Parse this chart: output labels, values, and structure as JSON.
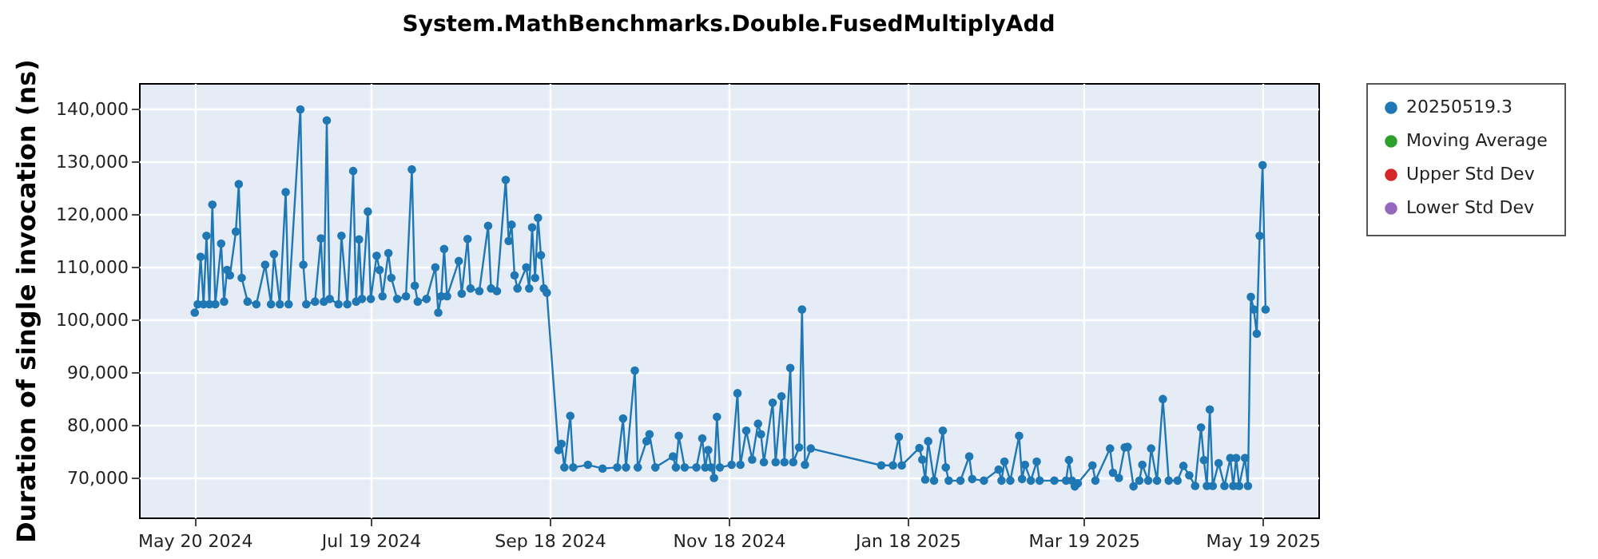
{
  "chart_data": {
    "type": "line",
    "title": "System.MathBenchmarks.Double.FusedMultiplyAdd",
    "ylabel": "Duration of single invocation (ns)",
    "xlim": [
      "2024-05-01",
      "2025-06-07"
    ],
    "xticks": [
      {
        "value": "2024-05-20",
        "label": "May 20 2024"
      },
      {
        "value": "2024-07-19",
        "label": "Jul 19 2024"
      },
      {
        "value": "2024-09-18",
        "label": "Sep 18 2024"
      },
      {
        "value": "2024-11-18",
        "label": "Nov 18 2024"
      },
      {
        "value": "2025-01-18",
        "label": "Jan 18 2025"
      },
      {
        "value": "2025-03-19",
        "label": "Mar 19 2025"
      },
      {
        "value": "2025-05-19",
        "label": "May 19 2025"
      }
    ],
    "ylim": [
      62500,
      145000
    ],
    "yticks": [
      {
        "value": 70000,
        "label": "70,000"
      },
      {
        "value": 80000,
        "label": "80,000"
      },
      {
        "value": 90000,
        "label": "90,000"
      },
      {
        "value": 100000,
        "label": "100,000"
      },
      {
        "value": 110000,
        "label": "110,000"
      },
      {
        "value": 120000,
        "label": "120,000"
      },
      {
        "value": 130000,
        "label": "130,000"
      },
      {
        "value": 140000,
        "label": "140,000"
      }
    ],
    "grid": true,
    "legend": "right",
    "marker": "circle",
    "line_style": "solid",
    "series": [
      {
        "name": "20250519.3",
        "color": "#1f77b4",
        "x": [
          "2024-05-20",
          "2024-05-21",
          "2024-05-22",
          "2024-05-23",
          "2024-05-24",
          "2024-05-25",
          "2024-05-26",
          "2024-05-27",
          "2024-05-29",
          "2024-05-30",
          "2024-05-31",
          "2024-06-01",
          "2024-06-03",
          "2024-06-04",
          "2024-06-05",
          "2024-06-07",
          "2024-06-10",
          "2024-06-13",
          "2024-06-15",
          "2024-06-16",
          "2024-06-18",
          "2024-06-20",
          "2024-06-21",
          "2024-06-25",
          "2024-06-26",
          "2024-06-27",
          "2024-06-30",
          "2024-07-02",
          "2024-07-03",
          "2024-07-04",
          "2024-07-05",
          "2024-07-08",
          "2024-07-09",
          "2024-07-11",
          "2024-07-13",
          "2024-07-14",
          "2024-07-15",
          "2024-07-16",
          "2024-07-18",
          "2024-07-19",
          "2024-07-21",
          "2024-07-22",
          "2024-07-23",
          "2024-07-25",
          "2024-07-26",
          "2024-07-28",
          "2024-07-31",
          "2024-08-02",
          "2024-08-03",
          "2024-08-04",
          "2024-08-07",
          "2024-08-10",
          "2024-08-11",
          "2024-08-12",
          "2024-08-13",
          "2024-08-14",
          "2024-08-18",
          "2024-08-19",
          "2024-08-21",
          "2024-08-22",
          "2024-08-25",
          "2024-08-28",
          "2024-08-29",
          "2024-08-31",
          "2024-09-03",
          "2024-09-04",
          "2024-09-05",
          "2024-09-06",
          "2024-09-07",
          "2024-09-10",
          "2024-09-11",
          "2024-09-12",
          "2024-09-13",
          "2024-09-14",
          "2024-09-15",
          "2024-09-16",
          "2024-09-17",
          "2024-09-21",
          "2024-09-22",
          "2024-09-23",
          "2024-09-25",
          "2024-09-26",
          "2024-10-01",
          "2024-10-06",
          "2024-10-11",
          "2024-10-13",
          "2024-10-14",
          "2024-10-17",
          "2024-10-18",
          "2024-10-21",
          "2024-10-22",
          "2024-10-24",
          "2024-10-30",
          "2024-10-31",
          "2024-11-01",
          "2024-11-03",
          "2024-11-07",
          "2024-11-09",
          "2024-11-10",
          "2024-11-11",
          "2024-11-12",
          "2024-11-13",
          "2024-11-14",
          "2024-11-15",
          "2024-11-19",
          "2024-11-21",
          "2024-11-22",
          "2024-11-24",
          "2024-11-26",
          "2024-11-28",
          "2024-11-29",
          "2024-11-30",
          "2024-12-03",
          "2024-12-04",
          "2024-12-06",
          "2024-12-07",
          "2024-12-09",
          "2024-12-10",
          "2024-12-12",
          "2024-12-13",
          "2024-12-14",
          "2024-12-16",
          "2025-01-09",
          "2025-01-13",
          "2025-01-15",
          "2025-01-16",
          "2025-01-22",
          "2025-01-23",
          "2025-01-24",
          "2025-01-25",
          "2025-01-27",
          "2025-01-30",
          "2025-01-31",
          "2025-02-01",
          "2025-02-05",
          "2025-02-08",
          "2025-02-09",
          "2025-02-13",
          "2025-02-18",
          "2025-02-19",
          "2025-02-20",
          "2025-02-22",
          "2025-02-25",
          "2025-02-26",
          "2025-02-27",
          "2025-03-01",
          "2025-03-03",
          "2025-03-04",
          "2025-03-09",
          "2025-03-13",
          "2025-03-14",
          "2025-03-15",
          "2025-03-16",
          "2025-03-17",
          "2025-03-22",
          "2025-03-23",
          "2025-03-28",
          "2025-03-29",
          "2025-03-31",
          "2025-04-02",
          "2025-04-03",
          "2025-04-05",
          "2025-04-07",
          "2025-04-08",
          "2025-04-10",
          "2025-04-11",
          "2025-04-13",
          "2025-04-15",
          "2025-04-17",
          "2025-04-20",
          "2025-04-22",
          "2025-04-24",
          "2025-04-26",
          "2025-04-28",
          "2025-04-29",
          "2025-04-30",
          "2025-05-01",
          "2025-05-02",
          "2025-05-04",
          "2025-05-06",
          "2025-05-08",
          "2025-05-09",
          "2025-05-10",
          "2025-05-11",
          "2025-05-13",
          "2025-05-14",
          "2025-05-15",
          "2025-05-16",
          "2025-05-17",
          "2025-05-18",
          "2025-05-19",
          "2025-05-20"
        ],
        "values": [
          101400,
          103000,
          112000,
          103000,
          116000,
          103000,
          121900,
          103000,
          114500,
          103500,
          109500,
          108500,
          116800,
          125800,
          108000,
          103500,
          103000,
          110500,
          103000,
          112500,
          103000,
          124300,
          103000,
          140000,
          110500,
          103000,
          103500,
          115500,
          103500,
          137900,
          104000,
          103000,
          116000,
          103000,
          128300,
          103500,
          115300,
          104000,
          120600,
          104000,
          112200,
          109500,
          104500,
          112700,
          108000,
          104000,
          104500,
          128600,
          106500,
          103500,
          104000,
          110000,
          101400,
          104500,
          113500,
          104500,
          111200,
          105000,
          115400,
          106000,
          105500,
          117900,
          106000,
          105500,
          126600,
          115000,
          118100,
          108500,
          106000,
          110000,
          106000,
          117600,
          108000,
          119400,
          112300,
          106000,
          105200,
          75300,
          76500,
          72000,
          81800,
          72000,
          72500,
          71800,
          72000,
          81300,
          72000,
          90400,
          72000,
          77000,
          78300,
          72000,
          74100,
          72000,
          78000,
          72000,
          72000,
          77500,
          72000,
          75300,
          72000,
          70000,
          81600,
          72000,
          72500,
          86100,
          72500,
          79000,
          73500,
          80300,
          78300,
          73000,
          84300,
          73000,
          85500,
          73000,
          90900,
          73000,
          75800,
          102000,
          72500,
          75600,
          72400,
          72400,
          77800,
          72400,
          75700,
          73500,
          69700,
          77000,
          69500,
          79000,
          72000,
          69500,
          69500,
          74100,
          69800,
          69500,
          71600,
          69500,
          73100,
          69500,
          78000,
          69800,
          72500,
          69500,
          73100,
          69500,
          69500,
          69500,
          73400,
          69500,
          68400,
          69000,
          72400,
          69500,
          75600,
          71000,
          70000,
          75800,
          75900,
          68400,
          69500,
          72500,
          69500,
          75600,
          69500,
          85000,
          69500,
          69500,
          72300,
          70500,
          68500,
          79600,
          73400,
          68500,
          83000,
          68500,
          72800,
          68500,
          73800,
          68500,
          73800,
          68500,
          73800,
          68500,
          104400,
          102000,
          97400,
          116000,
          129400,
          102000
        ]
      },
      {
        "name": "Moving Average",
        "color": "#2ca02c"
      },
      {
        "name": "Upper Std Dev",
        "color": "#d62728"
      },
      {
        "name": "Lower Std Dev",
        "color": "#9467bd"
      }
    ]
  }
}
